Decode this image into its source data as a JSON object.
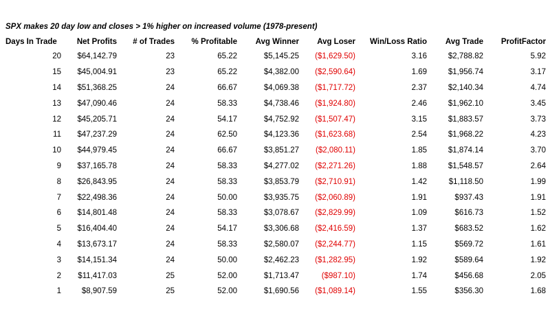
{
  "title": "SPX makes 20 day low and closes > 1% higher on increased volume (1978-present)",
  "columns": [
    "Days In Trade",
    "Net Profits",
    "# of Trades",
    "% Profitable",
    "Avg Winner",
    "Avg Loser",
    "Win/Loss Ratio",
    "Avg Trade",
    "ProfitFactor"
  ],
  "rows": [
    [
      "20",
      "$64,142.79",
      "23",
      "65.22",
      "$5,145.25",
      "($1,629.50)",
      "3.16",
      "$2,788.82",
      "5.92"
    ],
    [
      "15",
      "$45,004.91",
      "23",
      "65.22",
      "$4,382.00",
      "($2,590.64)",
      "1.69",
      "$1,956.74",
      "3.17"
    ],
    [
      "14",
      "$51,368.25",
      "24",
      "66.67",
      "$4,069.38",
      "($1,717.72)",
      "2.37",
      "$2,140.34",
      "4.74"
    ],
    [
      "13",
      "$47,090.46",
      "24",
      "58.33",
      "$4,738.46",
      "($1,924.80)",
      "2.46",
      "$1,962.10",
      "3.45"
    ],
    [
      "12",
      "$45,205.71",
      "24",
      "54.17",
      "$4,752.92",
      "($1,507.47)",
      "3.15",
      "$1,883.57",
      "3.73"
    ],
    [
      "11",
      "$47,237.29",
      "24",
      "62.50",
      "$4,123.36",
      "($1,623.68)",
      "2.54",
      "$1,968.22",
      "4.23"
    ],
    [
      "10",
      "$44,979.45",
      "24",
      "66.67",
      "$3,851.27",
      "($2,080.11)",
      "1.85",
      "$1,874.14",
      "3.70"
    ],
    [
      "9",
      "$37,165.78",
      "24",
      "58.33",
      "$4,277.02",
      "($2,271.26)",
      "1.88",
      "$1,548.57",
      "2.64"
    ],
    [
      "8",
      "$26,843.95",
      "24",
      "58.33",
      "$3,853.79",
      "($2,710.91)",
      "1.42",
      "$1,118.50",
      "1.99"
    ],
    [
      "7",
      "$22,498.36",
      "24",
      "50.00",
      "$3,935.75",
      "($2,060.89)",
      "1.91",
      "$937.43",
      "1.91"
    ],
    [
      "6",
      "$14,801.48",
      "24",
      "58.33",
      "$3,078.67",
      "($2,829.99)",
      "1.09",
      "$616.73",
      "1.52"
    ],
    [
      "5",
      "$16,404.40",
      "24",
      "54.17",
      "$3,306.68",
      "($2,416.59)",
      "1.37",
      "$683.52",
      "1.62"
    ],
    [
      "4",
      "$13,673.17",
      "24",
      "58.33",
      "$2,580.07",
      "($2,244.77)",
      "1.15",
      "$569.72",
      "1.61"
    ],
    [
      "3",
      "$14,151.34",
      "24",
      "50.00",
      "$2,462.23",
      "($1,282.95)",
      "1.92",
      "$589.64",
      "1.92"
    ],
    [
      "2",
      "$11,417.03",
      "25",
      "52.00",
      "$1,713.47",
      "($987.10)",
      "1.74",
      "$456.68",
      "2.05"
    ],
    [
      "1",
      "$8,907.59",
      "25",
      "52.00",
      "$1,690.56",
      "($1,089.14)",
      "1.55",
      "$356.30",
      "1.68"
    ]
  ],
  "colors": {
    "text": "#000000",
    "negative": "#e00000",
    "background": "#ffffff"
  }
}
